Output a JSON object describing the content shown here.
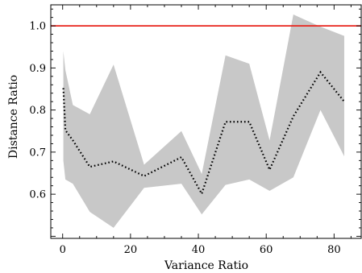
{
  "chart_data": {
    "type": "line",
    "xlabel": "Variance Ratio",
    "ylabel": "Distance Ratio",
    "xlim": [
      -3.5,
      88
    ],
    "ylim": [
      0.495,
      1.05
    ],
    "xticks": [
      0,
      20,
      40,
      60,
      80
    ],
    "xtick_labels": [
      "0",
      "20",
      "40",
      "60",
      "80"
    ],
    "yticks": [
      0.6,
      0.7,
      0.8,
      0.9,
      1.0
    ],
    "ytick_labels": [
      "0.6",
      "0.7",
      "0.8",
      "0.9",
      "1.0"
    ],
    "grid": false,
    "reference_line": {
      "y": 1.0,
      "color": "#e8231b"
    },
    "series": [
      {
        "style": "dotted",
        "color": "#000000",
        "x": [
          0.2,
          0.8,
          3,
          8,
          15,
          24,
          35,
          41,
          48,
          55,
          61,
          68,
          76,
          83
        ],
        "y": [
          0.852,
          0.752,
          0.728,
          0.665,
          0.678,
          0.643,
          0.688,
          0.601,
          0.772,
          0.772,
          0.658,
          0.785,
          0.89,
          0.82
        ]
      }
    ],
    "band": {
      "color": "#c8c8c8",
      "x": [
        0.2,
        0.8,
        3,
        8,
        15,
        24,
        35,
        41,
        48,
        55,
        61,
        68,
        76,
        83
      ],
      "upper": [
        0.94,
        0.895,
        0.812,
        0.79,
        0.908,
        0.67,
        0.75,
        0.648,
        0.93,
        0.91,
        0.728,
        1.027,
        0.998,
        0.976
      ],
      "lower": [
        0.68,
        0.635,
        0.625,
        0.558,
        0.52,
        0.615,
        0.625,
        0.552,
        0.622,
        0.635,
        0.608,
        0.64,
        0.8,
        0.69
      ]
    }
  }
}
